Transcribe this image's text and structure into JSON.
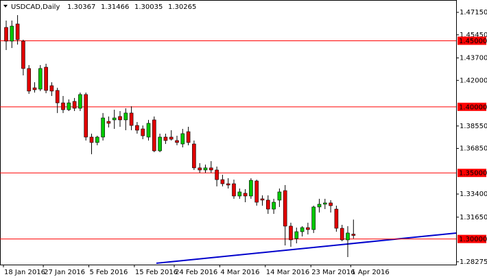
{
  "chart_data": {
    "type": "candlestick",
    "title": "USDCAD,Daily",
    "categories": [
      "18 Jan 2016",
      null,
      null,
      null,
      null,
      null,
      null,
      "27 Jan 2016",
      null,
      null,
      null,
      null,
      null,
      null,
      null,
      "5 Feb 2016",
      null,
      null,
      null,
      null,
      null,
      null,
      null,
      "15 Feb 2016",
      null,
      null,
      null,
      null,
      null,
      null,
      "24 Feb 2016",
      null,
      null,
      null,
      null,
      null,
      null,
      null,
      "4 Mar 2016",
      null,
      null,
      null,
      null,
      null,
      null,
      null,
      "14 Mar 2016",
      null,
      null,
      null,
      null,
      null,
      null,
      null,
      "23 Mar 2016",
      null,
      null,
      null,
      null,
      null,
      null,
      "1 Apr 2016"
    ],
    "open": [
      1.4601,
      1.4497,
      1.4627,
      1.4497,
      1.429,
      1.4144,
      1.4134,
      1.43,
      1.416,
      1.4124,
      1.403,
      1.3978,
      1.4041,
      1.3989,
      1.4093,
      1.3771,
      1.373,
      1.3771,
      1.389,
      1.3901,
      1.3927,
      1.3901,
      1.3953,
      1.3859,
      1.3833,
      1.3771,
      1.3901,
      1.3667,
      1.3771,
      1.3771,
      1.3745,
      1.3719,
      1.3812,
      1.3719,
      1.3538,
      1.3522,
      1.3538,
      1.3522,
      1.3449,
      1.3418,
      1.3418,
      1.3325,
      1.3346,
      1.3325,
      1.3439,
      1.3304,
      1.3294,
      1.3226,
      1.3294,
      1.3366,
      1.3097,
      1.3003,
      1.3055,
      1.3086,
      1.3071,
      1.3242,
      1.3263,
      1.3273,
      1.3226,
      1.3081,
      1.2993,
      1.30367
    ],
    "high": [
      1.4653,
      1.4653,
      1.4694,
      1.4508,
      1.4316,
      1.4186,
      1.4316,
      1.4326,
      1.4186,
      1.4144,
      1.4082,
      1.4056,
      1.4067,
      1.4108,
      1.4108,
      1.3797,
      1.3781,
      1.3953,
      1.3927,
      1.3978,
      1.3968,
      1.3989,
      1.4004,
      1.3885,
      1.3859,
      1.3901,
      1.3927,
      1.3797,
      1.3797,
      1.3823,
      1.3781,
      1.3833,
      1.3849,
      1.3745,
      1.3574,
      1.3563,
      1.3589,
      1.3548,
      1.3486,
      1.346,
      1.3449,
      1.3382,
      1.3377,
      1.346,
      1.3449,
      1.333,
      1.333,
      1.3304,
      1.3382,
      1.3408,
      1.3123,
      1.3086,
      1.3097,
      1.3123,
      1.3252,
      1.3304,
      1.3304,
      1.3294,
      1.3252,
      1.3107,
      1.3097,
      1.31466
    ],
    "low": [
      1.443,
      1.4445,
      1.4471,
      1.4238,
      1.4098,
      1.4108,
      1.4119,
      1.4103,
      1.4082,
      1.3953,
      1.3953,
      1.3968,
      1.3968,
      1.3968,
      1.3745,
      1.3641,
      1.3709,
      1.3745,
      1.3844,
      1.3833,
      1.3849,
      1.3823,
      1.3823,
      1.3797,
      1.3755,
      1.3745,
      1.3657,
      1.3657,
      1.3719,
      1.3745,
      1.3709,
      1.3693,
      1.3709,
      1.3522,
      1.3501,
      1.3501,
      1.3501,
      1.3398,
      1.3398,
      1.3382,
      1.3304,
      1.3304,
      1.3278,
      1.3304,
      1.3252,
      1.3252,
      1.319,
      1.319,
      1.3242,
      1.2951,
      1.2941,
      1.2967,
      1.3019,
      1.3034,
      1.3045,
      1.32,
      1.3226,
      1.32,
      1.3055,
      1.2983,
      1.2863,
      1.30035
    ],
    "close": [
      1.4497,
      1.4611,
      1.4508,
      1.429,
      1.4119,
      1.4129,
      1.429,
      1.4124,
      1.4119,
      1.403,
      1.3978,
      1.403,
      1.3989,
      1.4093,
      1.3771,
      1.373,
      1.3771,
      1.3916,
      1.3875,
      1.3916,
      1.3901,
      1.3953,
      1.3859,
      1.3823,
      1.3781,
      1.3875,
      1.3667,
      1.3771,
      1.3745,
      1.3755,
      1.373,
      1.3797,
      1.373,
      1.3538,
      1.3522,
      1.3538,
      1.3522,
      1.3449,
      1.3418,
      1.3408,
      1.3325,
      1.3356,
      1.3325,
      1.3444,
      1.3278,
      1.3294,
      1.3226,
      1.3278,
      1.3356,
      1.3097,
      1.2993,
      1.3055,
      1.3086,
      1.3071,
      1.3242,
      1.3263,
      1.3273,
      1.3252,
      1.3081,
      1.2993,
      1.3045,
      1.30265
    ],
    "up_color": "#00c800",
    "down_color": "#e00000",
    "ylim": [
      1.2806,
      1.4798
    ],
    "yticks": [
      {
        "value": 1.4715,
        "label": "1.47150"
      },
      {
        "value": 1.4545,
        "label": "1.45450"
      },
      {
        "value": 1.437,
        "label": "1.43700"
      },
      {
        "value": 1.42,
        "label": "1.42000"
      },
      {
        "value": 1.3855,
        "label": "1.38550"
      },
      {
        "value": 1.3685,
        "label": "1.36850"
      },
      {
        "value": 1.334,
        "label": "1.33400"
      },
      {
        "value": 1.3165,
        "label": "1.31650"
      },
      {
        "value": 1.28275,
        "label": "1.28275"
      }
    ],
    "levels": [
      {
        "value": 1.45,
        "label": "1.45000"
      },
      {
        "value": 1.4,
        "label": "1.40000"
      },
      {
        "value": 1.35,
        "label": "1.35000"
      },
      {
        "value": 1.3,
        "label": "1.30000"
      }
    ],
    "level_color": "#ff0000"
  }
}
